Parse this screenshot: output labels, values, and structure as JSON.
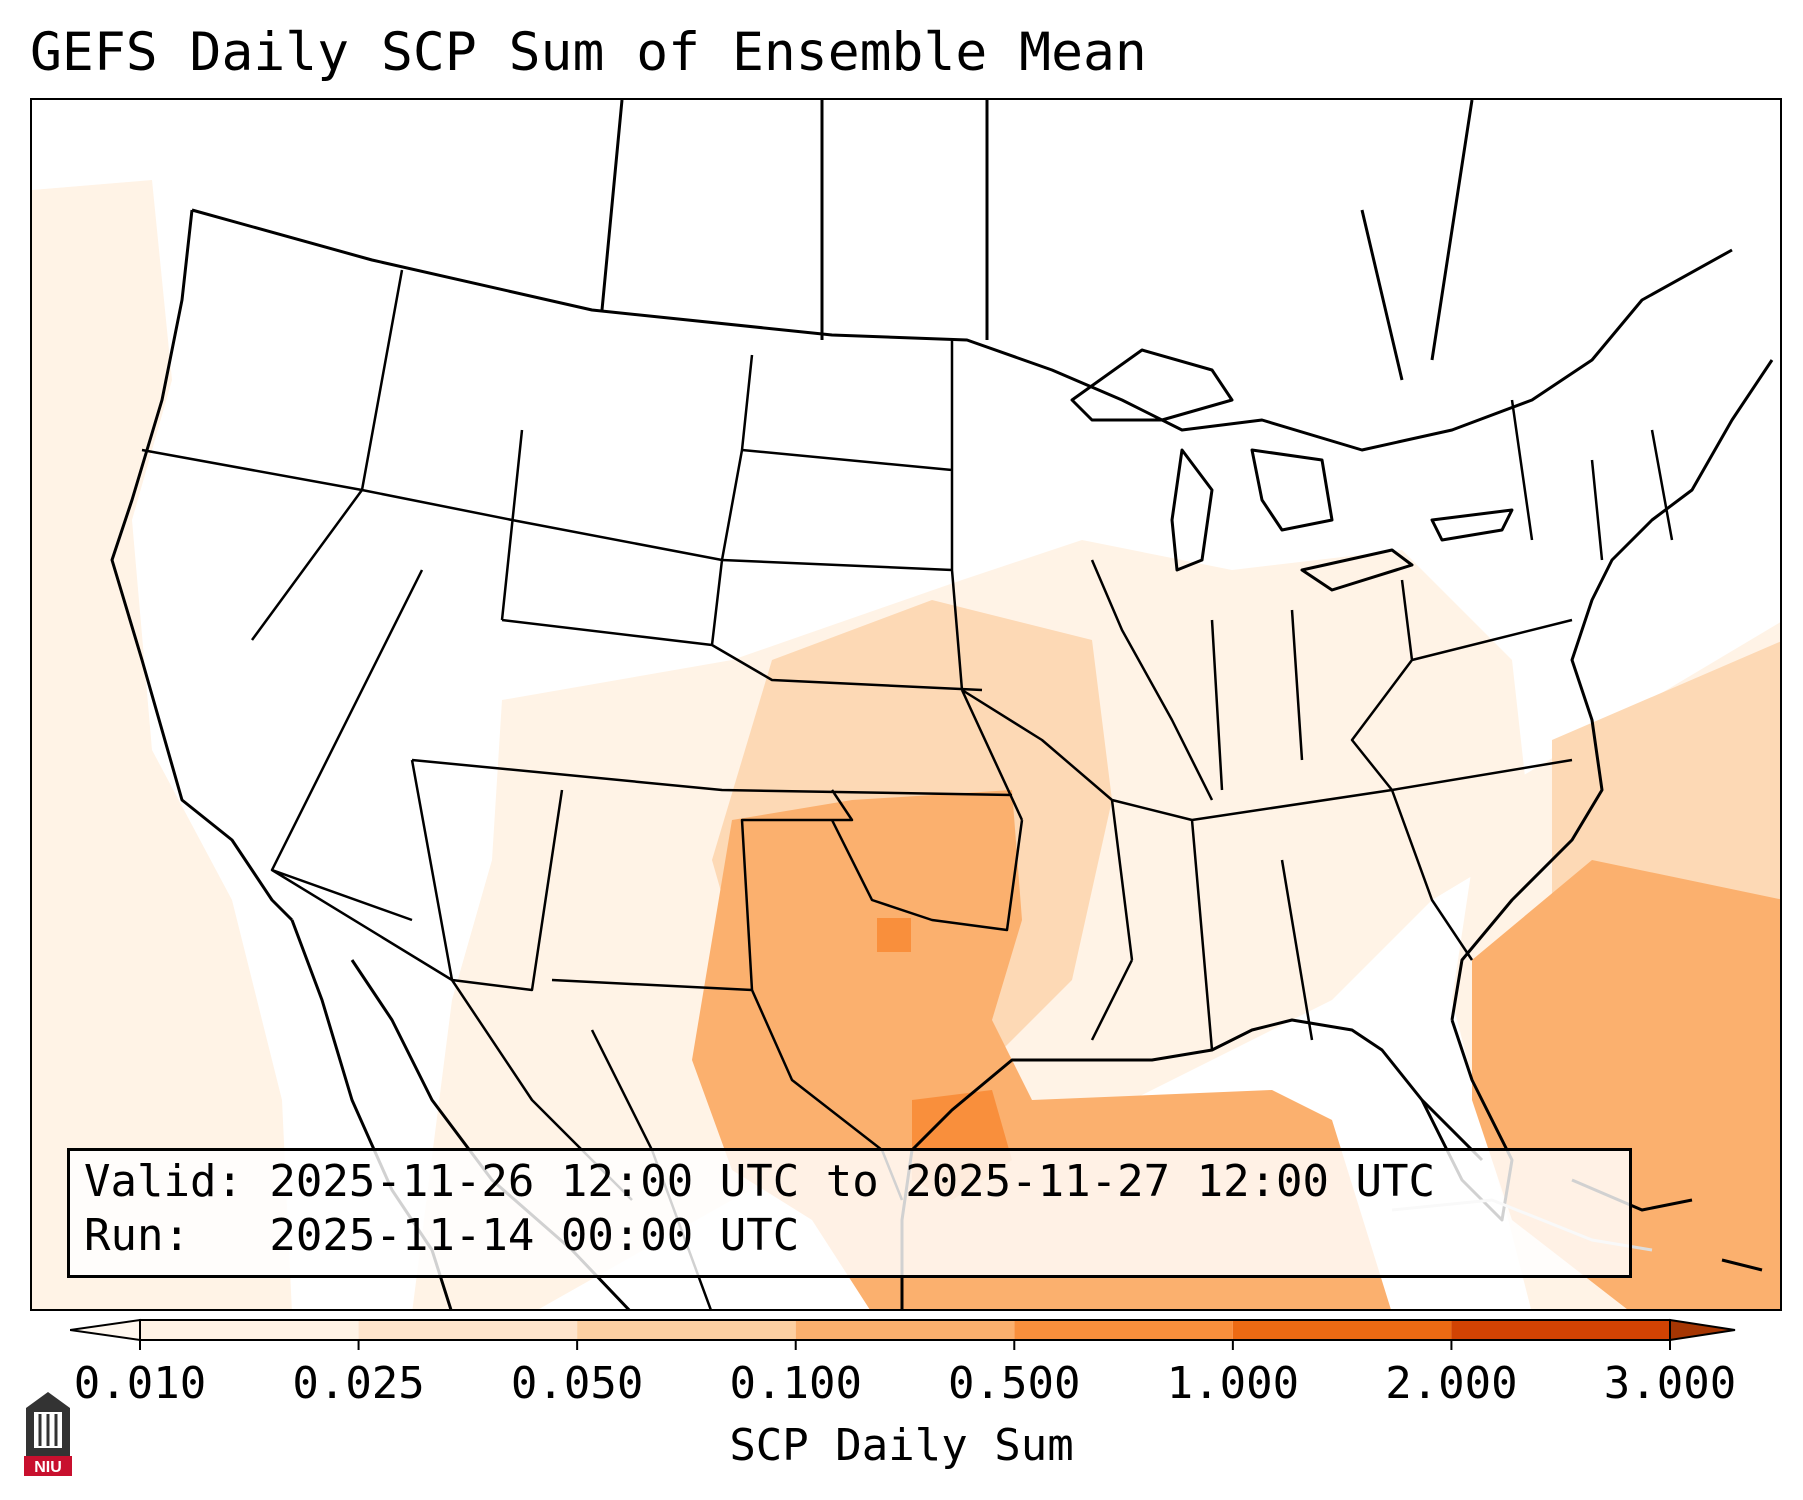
{
  "title": "GEFS Daily SCP Sum of Ensemble Mean",
  "valid_label": "Valid: 2025-11-26 12:00 UTC to 2025-11-27 12:00 UTC",
  "run_label": "Run:   2025-11-14 00:00 UTC",
  "colorbar": {
    "title": "SCP Daily Sum",
    "ticks": [
      "0.010",
      "0.025",
      "0.050",
      "0.100",
      "0.500",
      "1.000",
      "2.000",
      "3.000"
    ],
    "colors": [
      "#fff3e6",
      "#fee4cc",
      "#fdd0a2",
      "#fbb06e",
      "#f98f3c",
      "#ec6a13",
      "#d24303",
      "#a63603"
    ]
  },
  "logo": {
    "text": "NIU",
    "colors": {
      "tower": "#333333",
      "banner": "#c8102e"
    }
  },
  "map": {
    "features": [
      "state-borders",
      "coastlines",
      "canada-provinces",
      "mexico-states"
    ],
    "fill_colors": {
      "light": "#fff3e6",
      "medium": "#fdd9b5",
      "orange": "#fbb06e",
      "dark": "#f98f3c"
    }
  }
}
